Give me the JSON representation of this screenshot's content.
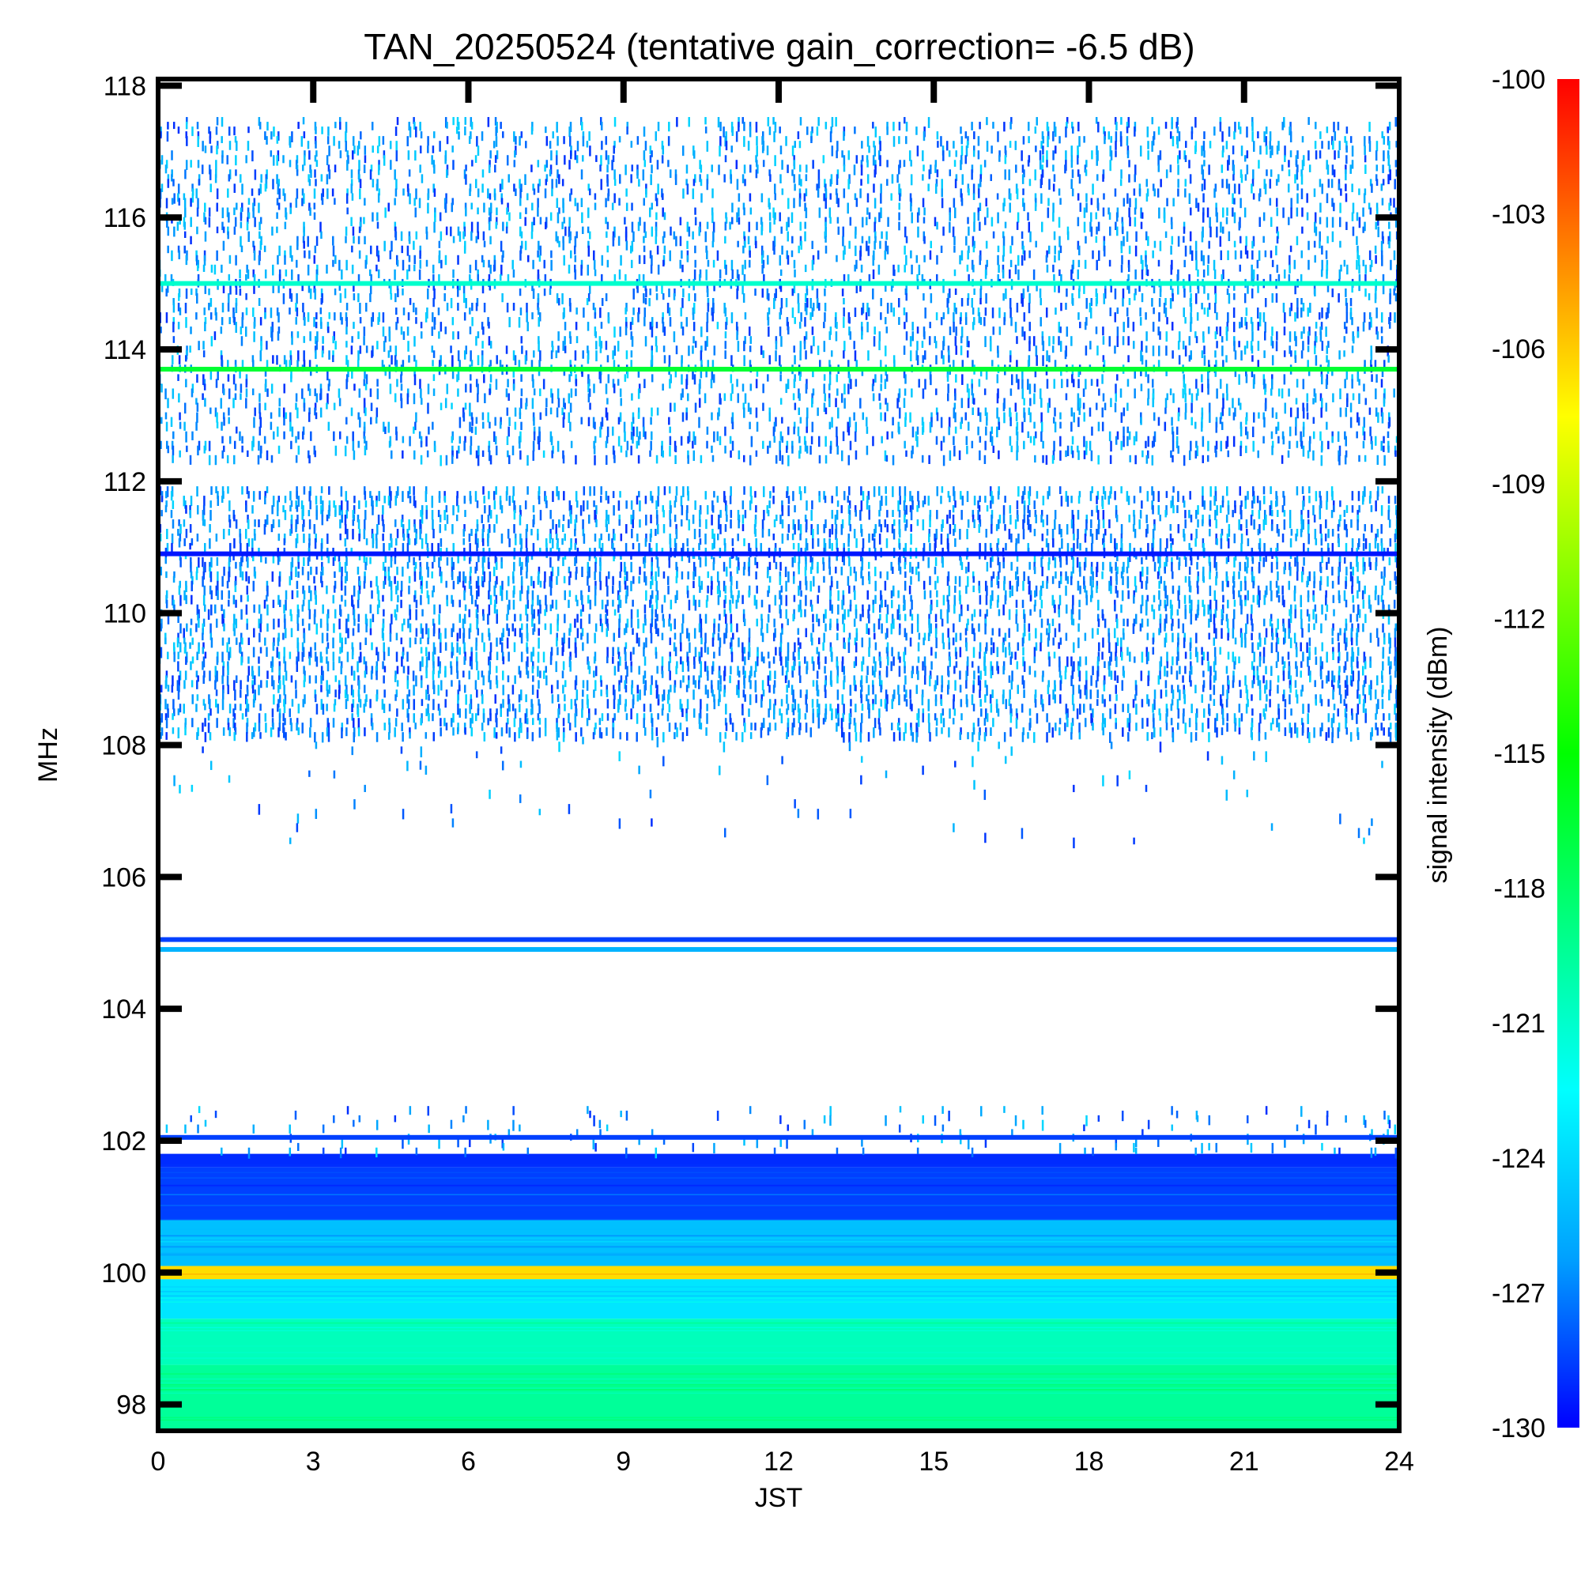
{
  "chart_data": {
    "type": "heatmap",
    "title": "TAN_20250524 (tentative gain_correction= -6.5 dB)",
    "xlabel": "JST",
    "ylabel": "MHz",
    "colorbar_label": "signal intensity (dBm)",
    "xlim": [
      0,
      24
    ],
    "ylim": [
      97.6,
      118.1
    ],
    "x_ticks": [
      0,
      3,
      6,
      9,
      12,
      15,
      18,
      21,
      24
    ],
    "y_ticks": [
      98,
      100,
      102,
      104,
      106,
      108,
      110,
      112,
      114,
      116,
      118
    ],
    "colorbar_range": [
      -130,
      -100
    ],
    "colorbar_ticks": [
      -100,
      -103,
      -106,
      -109,
      -112,
      -115,
      -118,
      -121,
      -124,
      -127,
      -130
    ],
    "colormap": [
      "#0000ff",
      "#00a0ff",
      "#00ffff",
      "#00ff80",
      "#00ff00",
      "#80ff00",
      "#ffff00",
      "#ff8000",
      "#ff0000"
    ],
    "bands": [
      {
        "f_min": 97.6,
        "f_max": 98.6,
        "level_dBm": -119.5
      },
      {
        "f_min": 98.6,
        "f_max": 99.3,
        "level_dBm": -120.5
      },
      {
        "f_min": 99.3,
        "f_max": 99.9,
        "level_dBm": -123.5
      },
      {
        "f_min": 99.9,
        "f_max": 100.1,
        "level_dBm": -106.5
      },
      {
        "f_min": 100.1,
        "f_max": 100.8,
        "level_dBm": -125.0
      },
      {
        "f_min": 100.8,
        "f_max": 101.6,
        "level_dBm": -128.5
      },
      {
        "f_min": 101.6,
        "f_max": 101.8,
        "level_dBm": -129.0
      }
    ],
    "lines": [
      {
        "freq": 115.0,
        "level_dBm": -121.0
      },
      {
        "freq": 113.7,
        "level_dBm": -116.5
      },
      {
        "freq": 110.9,
        "level_dBm": -129.5
      },
      {
        "freq": 105.05,
        "level_dBm": -128.5
      },
      {
        "freq": 104.9,
        "level_dBm": -125.5
      },
      {
        "freq": 102.05,
        "level_dBm": -128.5
      }
    ],
    "sparse_regions": [
      {
        "f_min": 112.3,
        "f_max": 117.5,
        "density": 0.3,
        "level_dBm": -129
      },
      {
        "f_min": 108.1,
        "f_max": 111.9,
        "density": 0.45,
        "level_dBm": -129
      },
      {
        "f_min": 106.5,
        "f_max": 108.1,
        "density": 0.02,
        "level_dBm": -129
      },
      {
        "f_min": 101.8,
        "f_max": 102.5,
        "density": 0.08,
        "level_dBm": -129
      }
    ]
  }
}
